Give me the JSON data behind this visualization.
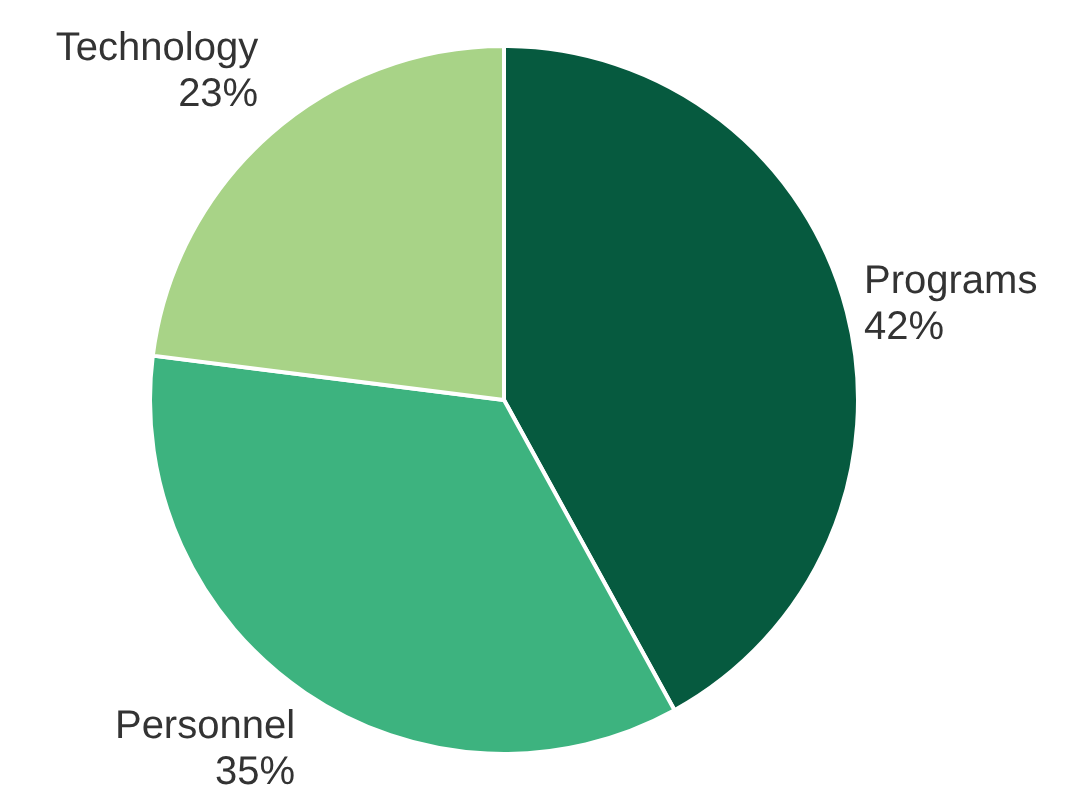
{
  "chart_data": {
    "type": "pie",
    "categories": [
      "Programs",
      "Personnel",
      "Technology"
    ],
    "values": [
      42,
      35,
      23
    ],
    "colors": [
      "#065a3f",
      "#3db37f",
      "#a8d387"
    ],
    "value_labels": [
      "42%",
      "35%",
      "23%"
    ],
    "legend": false
  }
}
